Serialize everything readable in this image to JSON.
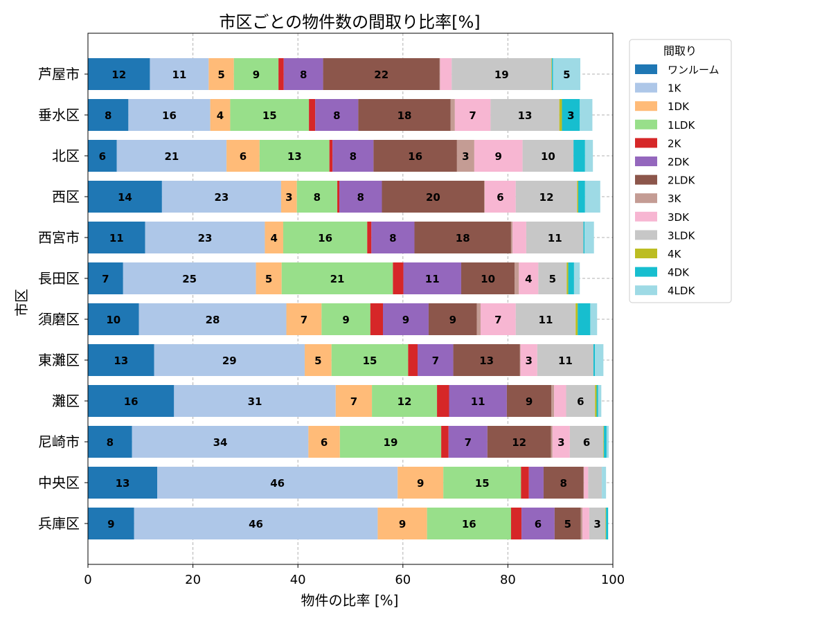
{
  "chart_data": {
    "type": "bar",
    "orientation": "horizontal",
    "stacked": true,
    "title": "市区ごとの物件数の間取り比率[%]",
    "xlabel": "物件の比率 [%]",
    "ylabel": "市区",
    "xlim": [
      0,
      100
    ],
    "xticks": [
      "0",
      "20",
      "40",
      "60",
      "80",
      "100"
    ],
    "grid": true,
    "legend": {
      "title": "間取り",
      "placement": "outside-top-right"
    },
    "categories": [
      "芦屋市",
      "垂水区",
      "北区",
      "西区",
      "西宮市",
      "長田区",
      "須磨区",
      "東灘区",
      "灘区",
      "尼崎市",
      "中央区",
      "兵庫区"
    ],
    "series": [
      {
        "name": "ワンルーム",
        "color": "#1f77b4",
        "values": [
          11.8,
          7.7,
          5.5,
          14.1,
          10.9,
          6.7,
          9.7,
          12.6,
          16.4,
          8.4,
          13.2,
          8.8
        ]
      },
      {
        "name": "1K",
        "color": "#aec7e8",
        "values": [
          11.2,
          15.6,
          20.9,
          22.7,
          22.8,
          25.3,
          28.1,
          28.7,
          30.8,
          33.6,
          45.8,
          46.4
        ]
      },
      {
        "name": "1DK",
        "color": "#ffbb78",
        "values": [
          4.8,
          3.8,
          6.3,
          3.0,
          3.5,
          4.9,
          6.7,
          5.1,
          6.9,
          6.0,
          8.7,
          9.4
        ]
      },
      {
        "name": "1LDK",
        "color": "#98df8a",
        "values": [
          8.5,
          15.0,
          13.3,
          7.7,
          16.0,
          21.2,
          9.3,
          14.6,
          12.4,
          19.3,
          14.8,
          16.0
        ]
      },
      {
        "name": "2K",
        "color": "#d62728",
        "values": [
          1.0,
          1.2,
          0.6,
          0.4,
          0.8,
          2.0,
          2.4,
          1.8,
          2.3,
          1.4,
          1.5,
          2.0
        ]
      },
      {
        "name": "2DK",
        "color": "#9467bd",
        "values": [
          7.5,
          8.2,
          7.8,
          8.1,
          8.2,
          11.0,
          8.7,
          6.8,
          11.0,
          7.4,
          2.8,
          6.3
        ]
      },
      {
        "name": "2LDK",
        "color": "#8c564b",
        "values": [
          22.2,
          17.6,
          15.9,
          19.5,
          18.4,
          10.2,
          9.2,
          12.7,
          8.5,
          12.1,
          7.6,
          5.0
        ]
      },
      {
        "name": "3K",
        "color": "#c49c94",
        "values": [
          0.1,
          0.8,
          3.3,
          0.1,
          0.3,
          0.8,
          0.7,
          0.1,
          0.5,
          0.3,
          0.1,
          0.3
        ]
      },
      {
        "name": "3DK",
        "color": "#f7b6d2",
        "values": [
          2.2,
          6.8,
          9.2,
          5.9,
          2.6,
          3.7,
          6.7,
          3.2,
          2.3,
          3.3,
          0.8,
          1.3
        ]
      },
      {
        "name": "3LDK",
        "color": "#c7c7c7",
        "values": [
          19.0,
          13.1,
          9.7,
          11.7,
          10.9,
          5.4,
          11.4,
          10.7,
          5.5,
          6.4,
          2.6,
          3.1
        ]
      },
      {
        "name": "4K",
        "color": "#bcbd22",
        "values": [
          0.1,
          0.5,
          0.0,
          0.2,
          0.0,
          0.3,
          0.4,
          0.0,
          0.3,
          0.1,
          0.0,
          0.1
        ]
      },
      {
        "name": "4DK",
        "color": "#17becf",
        "values": [
          0.2,
          3.4,
          2.2,
          1.3,
          0.2,
          1.1,
          2.4,
          0.3,
          0.3,
          0.5,
          0.0,
          0.4
        ]
      },
      {
        "name": "4LDK",
        "color": "#9edae5",
        "values": [
          5.2,
          2.4,
          1.5,
          2.9,
          1.8,
          1.1,
          1.3,
          1.6,
          0.6,
          0.4,
          0.8,
          0.0
        ]
      }
    ]
  }
}
